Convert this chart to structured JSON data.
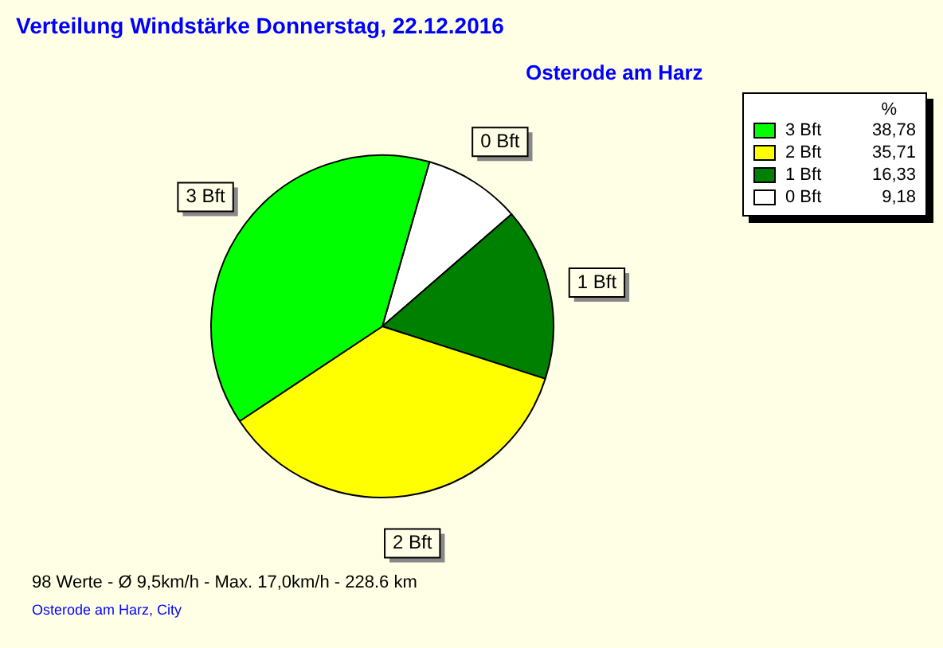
{
  "chart_data": {
    "type": "pie",
    "title": "Verteilung Windstärke  Donnerstag, 22.12.2016",
    "subtitle": "Osterode am Harz",
    "legend_title": "%",
    "categories": [
      "3 Bft",
      "2 Bft",
      "1 Bft",
      "0 Bft"
    ],
    "values": [
      38.78,
      35.71,
      16.33,
      9.18
    ],
    "value_labels": [
      "38,78",
      "35,71",
      "16,33",
      "9,18"
    ],
    "colors": [
      "#00ff00",
      "#ffff00",
      "#008000",
      "#ffffff"
    ],
    "legend": "top right",
    "annotations": [
      "98 Werte   -   Ø 9,5km/h  -  Max. 17,0km/h   -   228.6 km",
      "Osterode am Harz, City"
    ]
  }
}
